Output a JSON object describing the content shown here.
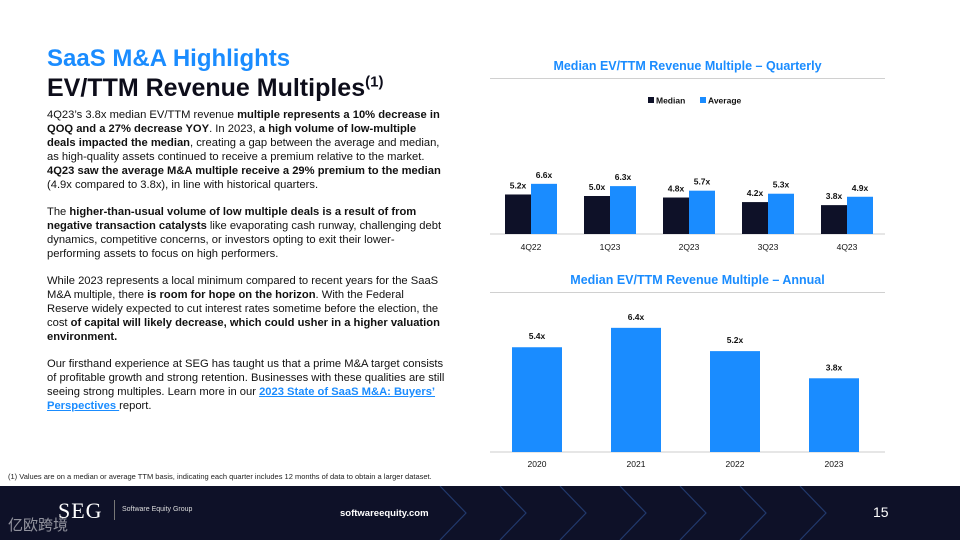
{
  "header": {
    "title_line1": "SaaS M&A Highlights",
    "title_line2": "EV/TTM Revenue Multiples",
    "title_sup": "(1)"
  },
  "body": {
    "p1": [
      {
        "t": "4Q23’s 3.8x median EV/TTM revenue ",
        "b": false
      },
      {
        "t": "multiple represents a 10% decrease in QOQ and a 27% decrease YOY",
        "b": true
      },
      {
        "t": ". In 2023, ",
        "b": false
      },
      {
        "t": "a high volume of low-multiple deals impacted the median",
        "b": true
      },
      {
        "t": ", creating a gap between the average and median, as high-quality assets continued to receive a premium relative to the market. ",
        "b": false
      },
      {
        "t": "4Q23 saw the average M&A multiple receive a 29% premium to the median",
        "b": true
      },
      {
        "t": " (4.9x compared to 3.8x), in line with historical quarters.",
        "b": false
      }
    ],
    "p2": [
      {
        "t": "The ",
        "b": false
      },
      {
        "t": "higher-than-usual volume of low multiple deals is a result of from negative transaction catalysts",
        "b": true
      },
      {
        "t": " like evaporating cash runway, challenging debt dynamics, competitive concerns, or investors opting to exit their lower-performing assets to focus on high performers.",
        "b": false
      }
    ],
    "p3": [
      {
        "t": "While 2023 represents a local minimum compared to recent years for the SaaS M&A multiple, there ",
        "b": false
      },
      {
        "t": "is room for hope on the horizon",
        "b": true
      },
      {
        "t": ". With the Federal Reserve widely expected to cut interest rates sometime before the election, the cost ",
        "b": false
      },
      {
        "t": "of capital will likely decrease, which could usher in a higher valuation environment.",
        "b": true
      }
    ],
    "p4": [
      {
        "t": "Our firsthand experience at SEG has taught us that a prime M&A target consists of profitable growth and strong retention. Businesses with these qualities are still seeing strong multiples. Learn more in our ",
        "b": false
      }
    ],
    "p4_link": "2023 State of SaaS M&A: Buyers’ Perspectives ",
    "p4_end": "report."
  },
  "footnote": "(1)  Values are on a median or average TTM basis, indicating each quarter includes 12 months of data to obtain a larger dataset.",
  "footer": {
    "logo": "SEG",
    "company": "Software Equity Group",
    "site": "softwareequity.com",
    "page": "15",
    "watermark": "亿欧跨境"
  },
  "chart_data": [
    {
      "type": "bar",
      "title": "Median EV/TTM Revenue Multiple – Quarterly",
      "categories": [
        "4Q22",
        "1Q23",
        "2Q23",
        "3Q23",
        "4Q23"
      ],
      "series": [
        {
          "name": "Median",
          "values": [
            5.2,
            5.0,
            4.8,
            4.2,
            3.8
          ],
          "labels": [
            "5.2x",
            "5.0x",
            "4.8x",
            "4.2x",
            "3.8x"
          ],
          "color": "#0e1128"
        },
        {
          "name": "Average",
          "values": [
            6.6,
            6.3,
            5.7,
            5.3,
            4.9
          ],
          "labels": [
            "6.6x",
            "6.3x",
            "5.7x",
            "5.3x",
            "4.9x"
          ],
          "color": "#1a8cff"
        }
      ],
      "legend": "top-center",
      "ylim": [
        0,
        8
      ]
    },
    {
      "type": "bar",
      "title": "Median EV/TTM Revenue Multiple – Annual",
      "categories": [
        "2020",
        "2021",
        "2022",
        "2023"
      ],
      "values": [
        5.4,
        6.4,
        5.2,
        3.8
      ],
      "labels": [
        "5.4x",
        "6.4x",
        "5.2x",
        "3.8x"
      ],
      "color": "#1a8cff",
      "ylim": [
        0,
        8
      ]
    }
  ]
}
